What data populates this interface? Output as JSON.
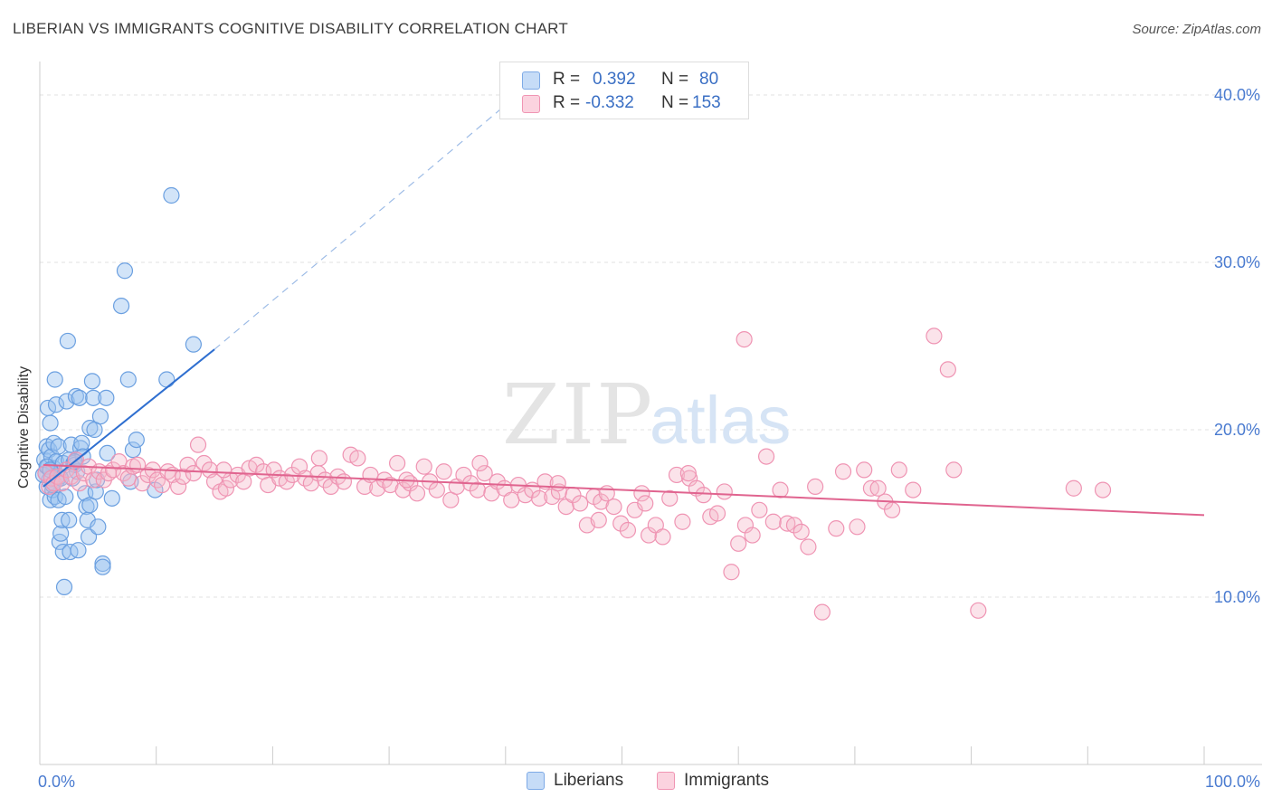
{
  "header": {
    "title": "LIBERIAN VS IMMIGRANTS COGNITIVE DISABILITY CORRELATION CHART",
    "source": "Source: ZipAtlas.com"
  },
  "watermark": {
    "zip": "ZIP",
    "atlas": "atlas"
  },
  "legend_box": {
    "rows": [
      {
        "r_label": "R =",
        "r_value": "0.392",
        "n_label": "N =",
        "n_value": "80",
        "color": "#9cc3f0"
      },
      {
        "r_label": "R =",
        "r_value": "-0.332",
        "n_label": "N =",
        "n_value": "153",
        "color": "#f6b8cb"
      }
    ]
  },
  "bottom_legend": [
    {
      "label": "Liberians",
      "color": "#9cc3f0"
    },
    {
      "label": "Immigrants",
      "color": "#f6b8cb"
    }
  ],
  "chart_data": {
    "type": "scatter",
    "title": "LIBERIAN VS IMMIGRANTS COGNITIVE DISABILITY CORRELATION CHART",
    "ylabel": "Cognitive Disability",
    "xlabel": "",
    "xlim": [
      0,
      100
    ],
    "ylim": [
      0,
      42
    ],
    "x_tick_labels": [
      "0.0%",
      "100.0%"
    ],
    "y_ticks": [
      {
        "value": 10,
        "label": "10.0%"
      },
      {
        "value": 20,
        "label": "20.0%"
      },
      {
        "value": 30,
        "label": "30.0%"
      },
      {
        "value": 40,
        "label": "40.0%"
      }
    ],
    "grid": true,
    "colors": {
      "liberians": "#5b93dd",
      "immigrants": "#ee82a6",
      "liberians_line": "#2f6fd0",
      "immigrants_line": "#e0648f",
      "axis_label": "#4a7bd0"
    },
    "series": [
      {
        "name": "Liberians",
        "points": [
          [
            0.4,
            18.2
          ],
          [
            0.5,
            17.4
          ],
          [
            0.6,
            19.0
          ],
          [
            0.6,
            16.6
          ],
          [
            0.7,
            21.3
          ],
          [
            0.7,
            17.8
          ],
          [
            0.8,
            18.8
          ],
          [
            0.8,
            17.0
          ],
          [
            0.9,
            20.4
          ],
          [
            0.9,
            15.8
          ],
          [
            1.0,
            18.4
          ],
          [
            1.0,
            17.2
          ],
          [
            1.1,
            16.4
          ],
          [
            1.2,
            19.2
          ],
          [
            1.2,
            17.7
          ],
          [
            1.3,
            23.0
          ],
          [
            1.3,
            16.0
          ],
          [
            1.4,
            18.1
          ],
          [
            1.4,
            21.5
          ],
          [
            1.5,
            17.0
          ],
          [
            1.6,
            19.0
          ],
          [
            1.6,
            15.8
          ],
          [
            1.7,
            13.3
          ],
          [
            1.7,
            17.2
          ],
          [
            1.8,
            13.8
          ],
          [
            1.9,
            14.6
          ],
          [
            2.0,
            18.0
          ],
          [
            2.0,
            12.7
          ],
          [
            2.1,
            10.6
          ],
          [
            2.2,
            16.0
          ],
          [
            2.3,
            21.7
          ],
          [
            2.4,
            25.3
          ],
          [
            2.5,
            18.2
          ],
          [
            2.5,
            14.6
          ],
          [
            2.6,
            12.7
          ],
          [
            2.7,
            19.1
          ],
          [
            2.8,
            17.1
          ],
          [
            2.9,
            18.0
          ],
          [
            3.0,
            17.9
          ],
          [
            3.1,
            22.0
          ],
          [
            3.2,
            17.5
          ],
          [
            3.3,
            12.8
          ],
          [
            3.4,
            21.9
          ],
          [
            3.5,
            18.9
          ],
          [
            3.6,
            19.2
          ],
          [
            3.7,
            18.4
          ],
          [
            3.9,
            16.2
          ],
          [
            4.0,
            15.4
          ],
          [
            4.1,
            14.6
          ],
          [
            4.2,
            13.6
          ],
          [
            4.3,
            20.1
          ],
          [
            4.3,
            15.5
          ],
          [
            4.5,
            22.9
          ],
          [
            4.6,
            21.9
          ],
          [
            4.7,
            20.0
          ],
          [
            4.8,
            16.3
          ],
          [
            4.9,
            17.0
          ],
          [
            5.0,
            14.2
          ],
          [
            5.2,
            20.8
          ],
          [
            5.4,
            12.0
          ],
          [
            5.4,
            11.8
          ],
          [
            5.7,
            21.9
          ],
          [
            5.8,
            18.6
          ],
          [
            6.2,
            15.9
          ],
          [
            7.3,
            29.5
          ],
          [
            7.0,
            27.4
          ],
          [
            7.6,
            23.0
          ],
          [
            7.8,
            16.9
          ],
          [
            8.0,
            18.8
          ],
          [
            8.3,
            19.4
          ],
          [
            9.9,
            16.4
          ],
          [
            10.9,
            23.0
          ],
          [
            11.3,
            34.0
          ],
          [
            13.2,
            25.1
          ],
          [
            0.3,
            17.3
          ],
          [
            0.6,
            17.8
          ],
          [
            1.1,
            16.7
          ],
          [
            1.8,
            17.1
          ],
          [
            3.0,
            18.1
          ],
          [
            0.9,
            17.6
          ]
        ]
      },
      {
        "name": "Immigrants",
        "points": [
          [
            0.5,
            17.4
          ],
          [
            0.8,
            16.6
          ],
          [
            1.0,
            17.1
          ],
          [
            1.2,
            16.8
          ],
          [
            1.5,
            17.2
          ],
          [
            1.9,
            16.8
          ],
          [
            2.3,
            17.6
          ],
          [
            2.7,
            17.2
          ],
          [
            3.1,
            18.2
          ],
          [
            3.4,
            16.8
          ],
          [
            3.8,
            17.4
          ],
          [
            4.2,
            17.8
          ],
          [
            4.6,
            17.0
          ],
          [
            5.1,
            17.5
          ],
          [
            5.5,
            17.0
          ],
          [
            5.9,
            17.4
          ],
          [
            6.3,
            17.6
          ],
          [
            6.8,
            18.1
          ],
          [
            7.2,
            17.4
          ],
          [
            7.6,
            17.1
          ],
          [
            8.0,
            17.8
          ],
          [
            8.4,
            17.9
          ],
          [
            8.8,
            16.8
          ],
          [
            9.3,
            17.3
          ],
          [
            9.7,
            17.6
          ],
          [
            10.1,
            17.0
          ],
          [
            10.5,
            16.7
          ],
          [
            11.0,
            17.5
          ],
          [
            11.4,
            17.3
          ],
          [
            11.9,
            16.6
          ],
          [
            12.3,
            17.2
          ],
          [
            12.7,
            17.9
          ],
          [
            13.2,
            17.4
          ],
          [
            13.6,
            19.1
          ],
          [
            14.1,
            18.0
          ],
          [
            14.6,
            17.6
          ],
          [
            15.0,
            16.9
          ],
          [
            15.5,
            16.3
          ],
          [
            16.0,
            16.5
          ],
          [
            16.4,
            17.0
          ],
          [
            17.0,
            17.3
          ],
          [
            17.5,
            16.9
          ],
          [
            18.0,
            17.7
          ],
          [
            18.6,
            17.9
          ],
          [
            19.2,
            17.5
          ],
          [
            19.6,
            16.7
          ],
          [
            20.1,
            17.6
          ],
          [
            20.6,
            17.1
          ],
          [
            21.2,
            16.9
          ],
          [
            21.7,
            17.3
          ],
          [
            22.3,
            17.8
          ],
          [
            22.8,
            17.1
          ],
          [
            23.3,
            16.8
          ],
          [
            23.9,
            17.4
          ],
          [
            24.5,
            17.0
          ],
          [
            25.0,
            16.6
          ],
          [
            25.6,
            17.2
          ],
          [
            26.1,
            16.9
          ],
          [
            26.7,
            18.5
          ],
          [
            27.3,
            18.3
          ],
          [
            27.9,
            16.6
          ],
          [
            28.4,
            17.3
          ],
          [
            29.0,
            16.5
          ],
          [
            29.6,
            17.0
          ],
          [
            30.1,
            16.7
          ],
          [
            30.7,
            18.0
          ],
          [
            31.2,
            16.4
          ],
          [
            31.8,
            16.8
          ],
          [
            32.4,
            16.2
          ],
          [
            33.0,
            17.8
          ],
          [
            33.5,
            16.9
          ],
          [
            34.1,
            16.4
          ],
          [
            34.7,
            17.5
          ],
          [
            35.3,
            15.8
          ],
          [
            35.8,
            16.6
          ],
          [
            36.4,
            17.3
          ],
          [
            37.0,
            16.8
          ],
          [
            37.6,
            16.4
          ],
          [
            38.2,
            17.4
          ],
          [
            38.8,
            16.2
          ],
          [
            39.3,
            16.9
          ],
          [
            39.9,
            16.5
          ],
          [
            40.5,
            15.8
          ],
          [
            41.1,
            16.7
          ],
          [
            41.7,
            16.1
          ],
          [
            42.3,
            16.4
          ],
          [
            42.9,
            15.9
          ],
          [
            43.4,
            16.9
          ],
          [
            44.0,
            16.0
          ],
          [
            44.6,
            16.3
          ],
          [
            45.2,
            15.4
          ],
          [
            45.8,
            16.1
          ],
          [
            46.4,
            15.6
          ],
          [
            47.0,
            14.3
          ],
          [
            47.6,
            16.0
          ],
          [
            48.2,
            15.7
          ],
          [
            48.7,
            16.2
          ],
          [
            49.3,
            15.4
          ],
          [
            49.9,
            14.4
          ],
          [
            50.5,
            14.0
          ],
          [
            51.1,
            15.2
          ],
          [
            51.7,
            16.2
          ],
          [
            52.3,
            13.7
          ],
          [
            52.9,
            14.3
          ],
          [
            53.5,
            13.6
          ],
          [
            54.1,
            15.9
          ],
          [
            54.7,
            17.3
          ],
          [
            55.2,
            14.5
          ],
          [
            55.8,
            17.1
          ],
          [
            56.4,
            16.5
          ],
          [
            57.0,
            16.1
          ],
          [
            57.6,
            14.8
          ],
          [
            58.2,
            15.0
          ],
          [
            58.8,
            16.3
          ],
          [
            59.4,
            11.5
          ],
          [
            60.0,
            13.2
          ],
          [
            60.6,
            14.3
          ],
          [
            61.2,
            13.7
          ],
          [
            61.8,
            15.2
          ],
          [
            62.4,
            18.4
          ],
          [
            63.0,
            14.5
          ],
          [
            63.6,
            16.4
          ],
          [
            64.2,
            14.4
          ],
          [
            64.8,
            14.3
          ],
          [
            65.4,
            13.9
          ],
          [
            66.0,
            13.0
          ],
          [
            66.6,
            16.6
          ],
          [
            67.2,
            9.1
          ],
          [
            68.4,
            14.1
          ],
          [
            69.0,
            17.5
          ],
          [
            70.2,
            14.2
          ],
          [
            70.8,
            17.6
          ],
          [
            71.4,
            16.5
          ],
          [
            72.0,
            16.5
          ],
          [
            72.6,
            15.7
          ],
          [
            73.2,
            15.2
          ],
          [
            73.8,
            17.6
          ],
          [
            75.0,
            16.4
          ],
          [
            76.8,
            25.6
          ],
          [
            78.0,
            23.6
          ],
          [
            78.5,
            17.6
          ],
          [
            80.6,
            9.2
          ],
          [
            88.8,
            16.5
          ],
          [
            91.3,
            16.4
          ],
          [
            60.5,
            25.4
          ],
          [
            55.7,
            17.4
          ],
          [
            52.0,
            15.6
          ],
          [
            48.0,
            14.6
          ],
          [
            44.5,
            16.8
          ],
          [
            37.8,
            18.0
          ],
          [
            31.5,
            17.0
          ],
          [
            24.0,
            18.3
          ],
          [
            15.8,
            17.6
          ]
        ]
      }
    ],
    "trend_lines": [
      {
        "series": "Liberians",
        "x_start": 0.3,
        "y_start": 16.6,
        "x_solid_end": 15.0,
        "y_solid_end": 24.8,
        "x_dash_end": 40.0,
        "y_dash_end": 39.4
      },
      {
        "series": "Immigrants",
        "x_start": 0.3,
        "y_start": 17.9,
        "x_end": 100.0,
        "y_end": 14.9
      }
    ]
  }
}
